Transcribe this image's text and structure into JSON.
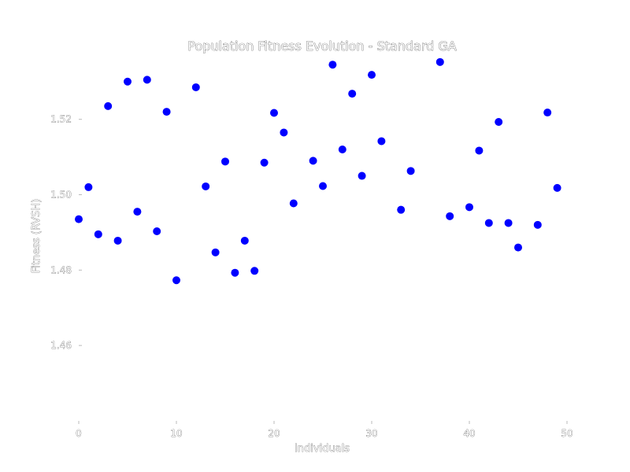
{
  "chart_data": {
    "type": "scatter",
    "title": "Population Fitness Evolution - Standard GA",
    "xlabel": "Individuals",
    "ylabel": "Fitness (RVSH)",
    "xlim": [
      0,
      50
    ],
    "ylim": [
      1.44,
      1.536
    ],
    "xticks": [
      "0",
      "10",
      "20",
      "30",
      "40",
      "50"
    ],
    "yticks": [
      "1.46",
      "1.48",
      "1.50",
      "1.52"
    ],
    "grid": false,
    "series": [
      {
        "color": "#0000ff",
        "x": [
          0,
          1,
          2,
          3,
          4,
          5,
          6,
          7,
          8,
          9,
          10,
          12,
          13,
          14,
          15,
          16,
          17,
          18,
          19,
          20,
          21,
          22,
          24,
          25,
          26,
          27,
          28,
          29,
          30,
          31,
          33,
          34,
          37,
          38,
          40,
          41,
          42,
          43,
          44,
          45,
          47,
          48,
          49
        ],
        "y": [
          1.4935,
          1.502,
          1.4895,
          1.5235,
          1.4878,
          1.53,
          1.4955,
          1.5305,
          1.4903,
          1.522,
          1.4773,
          1.5285,
          1.5022,
          1.4847,
          1.5088,
          1.4793,
          1.4878,
          1.4798,
          1.5085,
          1.5217,
          1.5165,
          1.4977,
          1.509,
          1.5023,
          1.5345,
          1.512,
          1.5268,
          1.505,
          1.5318,
          1.5142,
          1.496,
          1.5063,
          1.5352,
          1.4943,
          1.4967,
          1.5117,
          1.4925,
          1.5193,
          1.4925,
          1.486,
          1.492,
          1.5218,
          1.5018
        ]
      }
    ]
  }
}
